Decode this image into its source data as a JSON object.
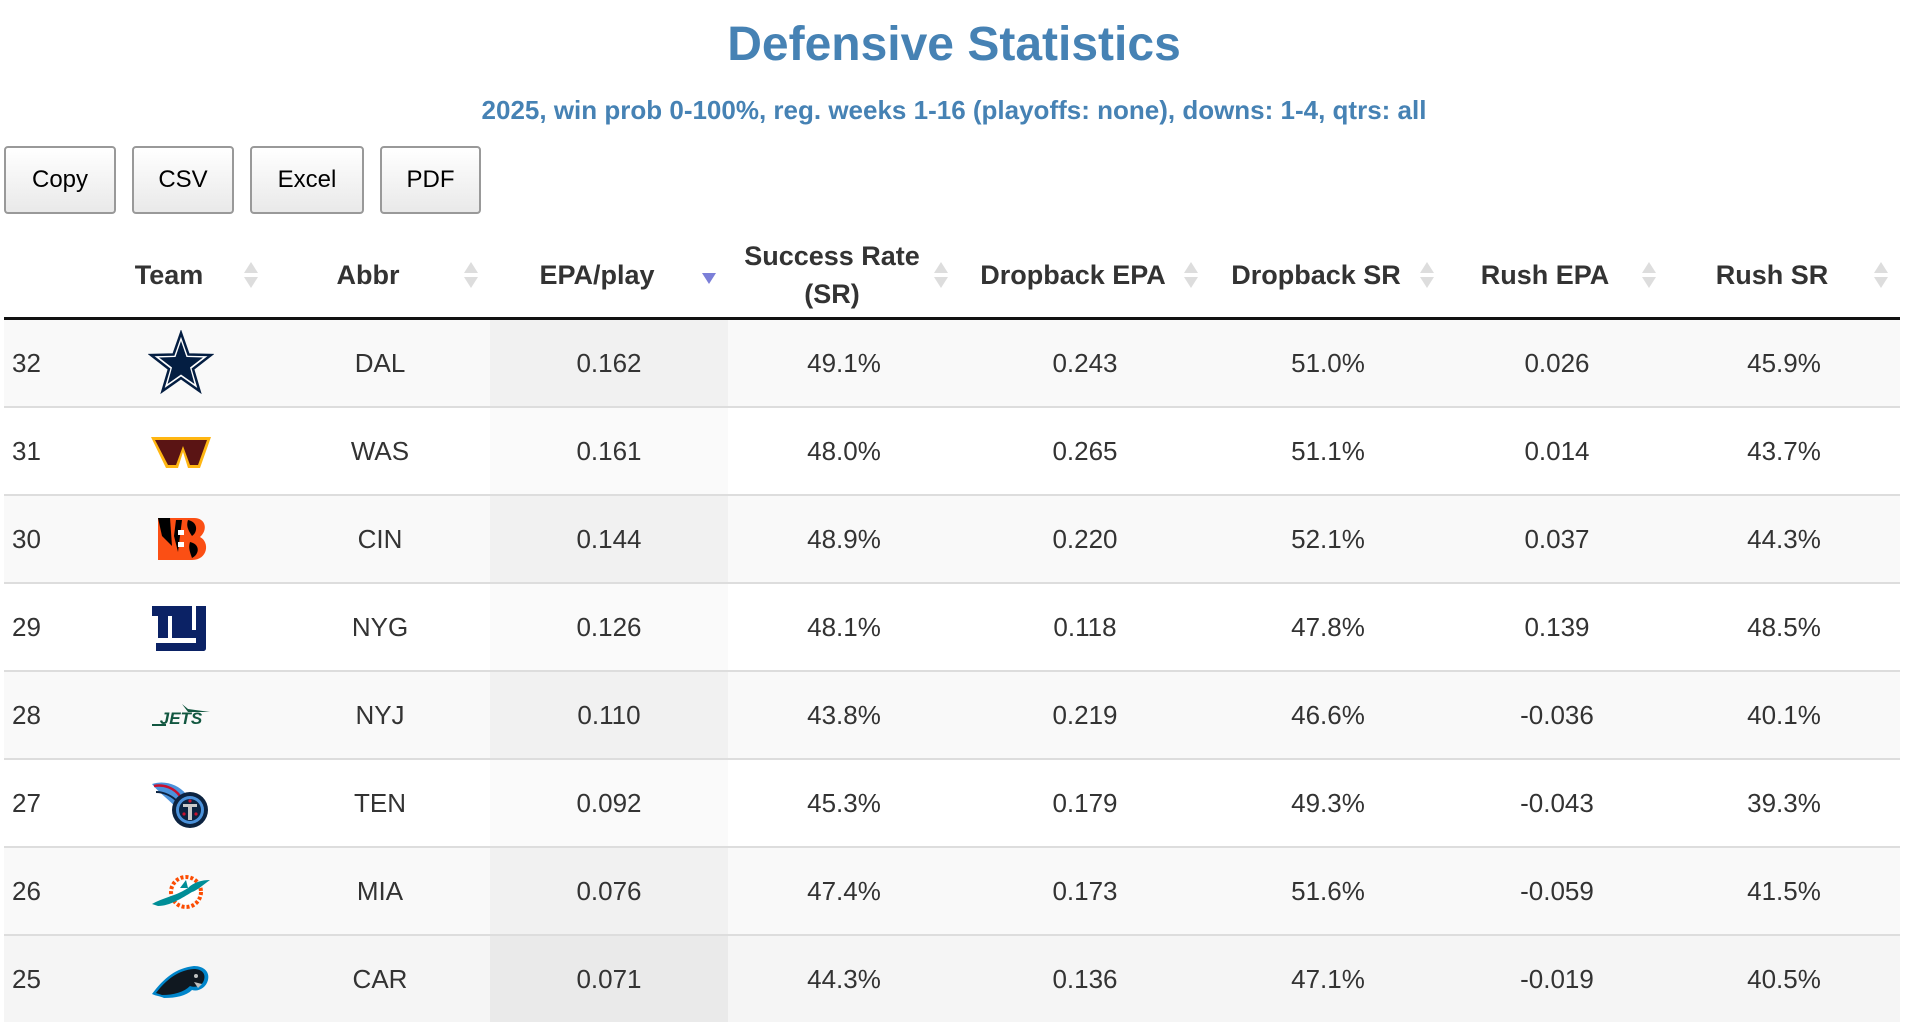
{
  "page": {
    "title": "Defensive Statistics",
    "subtitle": "2025, win prob 0-100%, reg. weeks 1-16 (playoffs: none), downs: 1-4, qtrs: all"
  },
  "toolbar": {
    "copy_label": "Copy",
    "csv_label": "CSV",
    "excel_label": "Excel",
    "pdf_label": "PDF"
  },
  "table": {
    "sorted_column": "EPA/play",
    "sort_direction": "descending",
    "columns": [
      {
        "key": "rank",
        "label": ""
      },
      {
        "key": "team",
        "label": "Team"
      },
      {
        "key": "abbr",
        "label": "Abbr"
      },
      {
        "key": "epa_play",
        "label": "EPA/play"
      },
      {
        "key": "sr",
        "label": "Success Rate (SR)"
      },
      {
        "key": "db_epa",
        "label": "Dropback EPA"
      },
      {
        "key": "db_sr",
        "label": "Dropback SR"
      },
      {
        "key": "rush_epa",
        "label": "Rush EPA"
      },
      {
        "key": "rush_sr",
        "label": "Rush SR"
      }
    ],
    "rows": [
      {
        "rank": "32",
        "logo": "cowboys-star-logo",
        "abbr": "DAL",
        "epa_play": "0.162",
        "sr": "49.1%",
        "db_epa": "0.243",
        "db_sr": "51.0%",
        "rush_epa": "0.026",
        "rush_sr": "45.9%"
      },
      {
        "rank": "31",
        "logo": "commanders-w-logo",
        "abbr": "WAS",
        "epa_play": "0.161",
        "sr": "48.0%",
        "db_epa": "0.265",
        "db_sr": "51.1%",
        "rush_epa": "0.014",
        "rush_sr": "43.7%"
      },
      {
        "rank": "30",
        "logo": "bengals-b-logo",
        "abbr": "CIN",
        "epa_play": "0.144",
        "sr": "48.9%",
        "db_epa": "0.220",
        "db_sr": "52.1%",
        "rush_epa": "0.037",
        "rush_sr": "44.3%"
      },
      {
        "rank": "29",
        "logo": "giants-ny-logo",
        "abbr": "NYG",
        "epa_play": "0.126",
        "sr": "48.1%",
        "db_epa": "0.118",
        "db_sr": "47.8%",
        "rush_epa": "0.139",
        "rush_sr": "48.5%"
      },
      {
        "rank": "28",
        "logo": "jets-wordmark-logo",
        "abbr": "NYJ",
        "epa_play": "0.110",
        "sr": "43.8%",
        "db_epa": "0.219",
        "db_sr": "46.6%",
        "rush_epa": "-0.036",
        "rush_sr": "40.1%"
      },
      {
        "rank": "27",
        "logo": "titans-logo",
        "abbr": "TEN",
        "epa_play": "0.092",
        "sr": "45.3%",
        "db_epa": "0.179",
        "db_sr": "49.3%",
        "rush_epa": "-0.043",
        "rush_sr": "39.3%"
      },
      {
        "rank": "26",
        "logo": "dolphins-logo",
        "abbr": "MIA",
        "epa_play": "0.076",
        "sr": "47.4%",
        "db_epa": "0.173",
        "db_sr": "51.6%",
        "rush_epa": "-0.059",
        "rush_sr": "41.5%"
      },
      {
        "rank": "25",
        "logo": "panthers-logo",
        "abbr": "CAR",
        "epa_play": "0.071",
        "sr": "44.3%",
        "db_epa": "0.136",
        "db_sr": "47.1%",
        "rush_epa": "-0.019",
        "rush_sr": "40.5%"
      }
    ]
  },
  "colors": {
    "title": "#4682b4",
    "sort_active": "#7b7fd8",
    "header_border": "#111111",
    "row_border": "#dddddd"
  }
}
